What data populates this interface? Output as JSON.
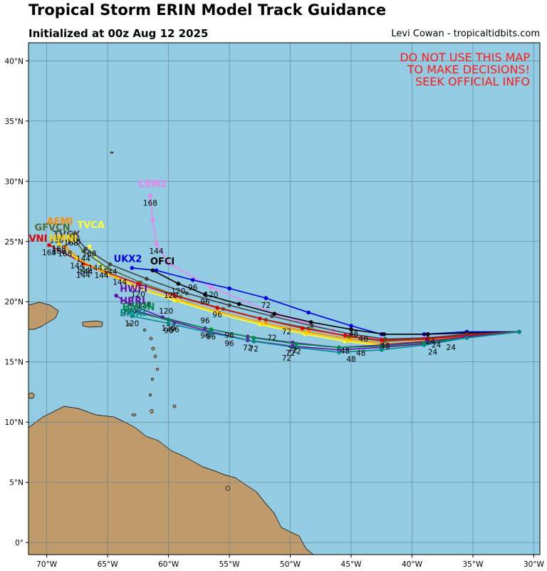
{
  "header": {
    "title": "Tropical Storm ERIN Model Track Guidance",
    "subtitle": "Initialized at 00z Aug 12 2025",
    "credit": "Levi Cowan - tropicaltidbits.com"
  },
  "warning": [
    "DO NOT USE THIS MAP",
    "TO MAKE DECISIONS!",
    "SEEK OFFICIAL INFO"
  ],
  "colors": {
    "ocean": "#92cbe2",
    "land": "#bf9a6b",
    "warning": "#ff1a1a"
  },
  "chart_data": {
    "type": "line",
    "xlim": [
      -71.5,
      -29.5
    ],
    "ylim": [
      -1,
      41.5
    ],
    "x_ticks": [
      {
        "v": -70,
        "label": "70°W"
      },
      {
        "v": -65,
        "label": "65°W"
      },
      {
        "v": -60,
        "label": "60°W"
      },
      {
        "v": -55,
        "label": "55°W"
      },
      {
        "v": -50,
        "label": "50°W"
      },
      {
        "v": -45,
        "label": "45°W"
      },
      {
        "v": -40,
        "label": "40°W"
      },
      {
        "v": -35,
        "label": "35°W"
      },
      {
        "v": -30,
        "label": "30°W"
      }
    ],
    "y_ticks": [
      {
        "v": 0,
        "label": "0°"
      },
      {
        "v": 5,
        "label": "5°N"
      },
      {
        "v": 10,
        "label": "10°N"
      },
      {
        "v": 15,
        "label": "15°N"
      },
      {
        "v": 20,
        "label": "20°N"
      },
      {
        "v": 25,
        "label": "25°N"
      },
      {
        "v": 30,
        "label": "30°N"
      },
      {
        "v": 35,
        "label": "35°N"
      },
      {
        "v": 40,
        "label": "40°N"
      }
    ],
    "grid": true,
    "series": [
      {
        "name": "CEM2",
        "color": "#ee82ee",
        "lon": [
          -31.2,
          -35.5,
          -39.0,
          -42.5,
          -46.5,
          -51.0,
          -56.5,
          -60.0,
          -61.0,
          -61.3,
          -61.5
        ],
        "lat": [
          17.5,
          17.3,
          17.0,
          16.9,
          17.6,
          18.9,
          21.2,
          23.2,
          24.8,
          26.8,
          28.8
        ],
        "hours": [
          {
            "i": 10,
            "t": "168"
          },
          {
            "i": 8,
            "t": "144"
          },
          {
            "i": 6,
            "t": "120"
          }
        ],
        "tag": "CEM2",
        "tag_at": [
          -62.5,
          29.5
        ]
      },
      {
        "name": "UKX2",
        "color": "#0000dd",
        "lon": [
          -31.2,
          -35.5,
          -39.0,
          -42.5,
          -45.0,
          -48.5,
          -52.0,
          -55.0,
          -58.0,
          -61.0,
          -63.0
        ],
        "lat": [
          17.5,
          17.5,
          17.3,
          17.3,
          18.0,
          19.1,
          20.3,
          21.1,
          21.8,
          22.6,
          22.8
        ],
        "hours": [
          {
            "i": 6,
            "t": "72"
          },
          {
            "i": 8,
            "t": "96"
          }
        ],
        "tag": "UKX2",
        "tag_at": [
          -64.5,
          23.3
        ]
      },
      {
        "name": "OFCI",
        "color": "#000000",
        "lon": [
          -31.2,
          -35.5,
          -38.7,
          -42.3,
          -45.0,
          -48.3,
          -51.3,
          -54.2,
          -57.0,
          -59.2,
          -61.3
        ],
        "lat": [
          17.5,
          17.4,
          17.3,
          17.3,
          17.7,
          18.3,
          19.0,
          19.8,
          20.6,
          21.5,
          22.6
        ],
        "hours": [
          {
            "i": 8,
            "t": "96"
          },
          {
            "i": 9,
            "t": "120"
          }
        ],
        "tag": "OFCI",
        "tag_at": [
          -61.5,
          23.1
        ]
      },
      {
        "name": "AEMI",
        "color": "#ff8c00",
        "lon": [
          -31.2,
          -35.5,
          -38.7,
          -42.0,
          -45.0,
          -48.5,
          -52.0,
          -56.0,
          -60.0,
          -63.5,
          -66.8,
          -68.5
        ],
        "lat": [
          17.5,
          17.2,
          16.8,
          16.5,
          16.9,
          17.5,
          18.2,
          19.2,
          20.4,
          21.6,
          23.1,
          24.6
        ],
        "hours": [
          {
            "i": 11,
            "t": "168"
          },
          {
            "i": 10,
            "t": "144"
          }
        ],
        "tag": "AEMI",
        "tag_at": [
          -70.0,
          26.4
        ]
      },
      {
        "name": "TVCA",
        "color": "#ffff33",
        "lon": [
          -31.2,
          -35.5,
          -38.8,
          -42.2,
          -45.5,
          -48.8,
          -52.5,
          -56.0,
          -59.5,
          -62.8,
          -65.5,
          -66.5
        ],
        "lat": [
          17.5,
          17.1,
          16.6,
          16.3,
          16.7,
          17.3,
          18.1,
          19.0,
          20.1,
          21.2,
          22.8,
          24.6
        ],
        "hours": [
          {
            "i": 11,
            "t": "168"
          },
          {
            "i": 10,
            "t": "144"
          }
        ],
        "tag": "TVCA",
        "tag_at": [
          -67.5,
          26.1
        ]
      },
      {
        "name": "GFVCN",
        "color": "#556b2f",
        "lon": [
          -31.2,
          -35.5,
          -38.8,
          -42.3,
          -45.2,
          -48.5,
          -52.0,
          -55.5,
          -59.0,
          -62.3,
          -65.0,
          -67.0,
          -68.0
        ],
        "lat": [
          17.5,
          17.2,
          16.9,
          16.7,
          17.1,
          17.8,
          18.5,
          19.4,
          20.4,
          21.6,
          22.8,
          24.2,
          25.5
        ],
        "hours": [
          {
            "i": 12,
            "t": "168"
          },
          {
            "i": 11,
            "t": "144"
          }
        ],
        "tag": "GFVCN",
        "tag_at": [
          -71.0,
          25.9
        ]
      },
      {
        "name": "TVCX",
        "color": "#444444",
        "lon": [
          -31.2,
          -35.5,
          -38.7,
          -42.2,
          -45.0,
          -48.2,
          -51.5,
          -55.0,
          -58.5,
          -61.8,
          -64.8,
          -66.8,
          -67.8
        ],
        "lat": [
          17.5,
          17.3,
          17.0,
          16.9,
          17.3,
          18.0,
          18.8,
          19.7,
          20.7,
          21.9,
          23.1,
          24.4,
          25.6
        ],
        "hours": [
          {
            "i": 12,
            "t": "168"
          },
          {
            "i": 10,
            "t": "144"
          }
        ],
        "tag": "TVCX",
        "tag_at": [
          -69.5,
          25.3
        ]
      },
      {
        "name": "AVNI",
        "color": "#dd0000",
        "lon": [
          -31.2,
          -35.5,
          -38.8,
          -42.5,
          -45.5,
          -49.0,
          -52.5,
          -56.0,
          -59.5,
          -62.5,
          -65.0,
          -67.0,
          -69.8
        ],
        "lat": [
          17.5,
          17.2,
          16.9,
          16.8,
          17.2,
          17.8,
          18.6,
          19.5,
          20.5,
          21.5,
          22.4,
          23.2,
          24.7
        ],
        "hours": [
          {
            "i": 12,
            "t": "168"
          },
          {
            "i": 11,
            "t": "144"
          }
        ],
        "tag": "AVNI",
        "tag_at": [
          -72.0,
          25.0
        ]
      },
      {
        "name": "HMNI",
        "color": "#ffd000",
        "lon": [
          -31.2,
          -35.5,
          -38.8,
          -42.3,
          -45.3,
          -48.7,
          -52.3,
          -55.8,
          -59.2,
          -62.3,
          -65.0,
          -67.5,
          -69.0
        ],
        "lat": [
          17.5,
          17.1,
          16.7,
          16.4,
          16.8,
          17.4,
          18.2,
          19.1,
          20.1,
          21.2,
          22.3,
          23.6,
          24.8
        ],
        "hours": [
          {
            "i": 12,
            "t": "168"
          },
          {
            "i": 11,
            "t": "144"
          }
        ],
        "tag": "HMNI",
        "tag_at": [
          -69.8,
          25.0
        ]
      },
      {
        "name": "HWFI",
        "color": "#6a0dad",
        "lon": [
          -31.2,
          -35.5,
          -38.8,
          -42.5,
          -46.0,
          -49.8,
          -53.5,
          -57.0,
          -60.5,
          -63.2,
          -64.3
        ],
        "lat": [
          17.5,
          17.1,
          16.7,
          16.4,
          16.2,
          16.6,
          17.1,
          17.8,
          18.7,
          19.8,
          20.5
        ],
        "hours": [
          {
            "i": 5,
            "t": "72"
          },
          {
            "i": 7,
            "t": "96"
          },
          {
            "i": 9,
            "t": "120"
          }
        ],
        "tag": "HWFI",
        "tag_at": [
          -64.0,
          20.8
        ]
      },
      {
        "name": "HRRI",
        "color": "#6a0dad",
        "lon": [
          -31.2,
          -35.5,
          -39.0,
          -42.5,
          -46.0,
          -49.8,
          -53.5,
          -56.5,
          -59.5,
          -62.5
        ],
        "lat": [
          17.5,
          17.0,
          16.5,
          16.2,
          16.0,
          16.3,
          16.8,
          17.5,
          18.3,
          19.2
        ],
        "hours": [
          {
            "i": 6,
            "t": "72"
          },
          {
            "i": 8,
            "t": "96"
          }
        ],
        "tag": "HRRI",
        "tag_at": [
          -64.0,
          19.8
        ]
      },
      {
        "name": "HMON",
        "color": "#008b45",
        "lon": [
          -31.2,
          -35.5,
          -39.0,
          -42.5,
          -46.0,
          -49.5,
          -53.0,
          -56.5,
          -60.0,
          -63.5
        ],
        "lat": [
          17.5,
          17.0,
          16.6,
          16.3,
          16.2,
          16.5,
          17.0,
          17.7,
          18.5,
          19.3
        ],
        "hours": [
          {
            "i": 5,
            "t": "72"
          },
          {
            "i": 7,
            "t": "96"
          }
        ],
        "tag": "HMON",
        "tag_at": [
          -63.8,
          19.3
        ]
      },
      {
        "name": "EMXI",
        "color": "#008b8b",
        "lon": [
          -31.2,
          -35.5,
          -39.0,
          -42.5,
          -46.0,
          -49.5,
          -53.0,
          -56.5,
          -60.0,
          -63.0
        ],
        "lat": [
          17.5,
          17.0,
          16.4,
          16.0,
          15.8,
          16.2,
          16.7,
          17.4,
          18.2,
          18.8
        ],
        "hours": [
          {
            "i": 6,
            "t": "72"
          },
          {
            "i": 8,
            "t": "96"
          },
          {
            "i": 9,
            "t": "120"
          }
        ],
        "tag": "EMXI",
        "tag_at": [
          -64.0,
          18.8
        ]
      }
    ],
    "extra_hour_labels": [
      {
        "lon": -38.5,
        "lat": 16.5,
        "t": "24"
      },
      {
        "lon": -38.3,
        "lat": 15.6,
        "t": "24"
      },
      {
        "lon": -36.8,
        "lat": 16.0,
        "t": "24"
      },
      {
        "lon": -38.0,
        "lat": 16.2,
        "t": "24"
      },
      {
        "lon": -45.0,
        "lat": 15.0,
        "t": "48"
      },
      {
        "lon": -44.2,
        "lat": 15.5,
        "t": "48"
      },
      {
        "lon": -45.5,
        "lat": 15.7,
        "t": "48"
      },
      {
        "lon": -42.2,
        "lat": 16.1,
        "t": "48"
      },
      {
        "lon": -44.8,
        "lat": 17.1,
        "t": "48"
      },
      {
        "lon": -44.0,
        "lat": 16.7,
        "t": "48"
      },
      {
        "lon": -50.0,
        "lat": 15.5,
        "t": "72"
      },
      {
        "lon": -50.3,
        "lat": 15.1,
        "t": "72"
      },
      {
        "lon": -51.5,
        "lat": 16.8,
        "t": "72"
      },
      {
        "lon": -50.3,
        "lat": 17.3,
        "t": "72"
      },
      {
        "lon": -55.0,
        "lat": 17.0,
        "t": "96"
      },
      {
        "lon": -55.0,
        "lat": 16.3,
        "t": "96"
      },
      {
        "lon": -57.0,
        "lat": 18.2,
        "t": "96"
      },
      {
        "lon": -56.0,
        "lat": 18.7,
        "t": "96"
      },
      {
        "lon": -60.2,
        "lat": 19.0,
        "t": "120"
      },
      {
        "lon": -62.0,
        "lat": 19.5,
        "t": "120"
      },
      {
        "lon": -59.8,
        "lat": 20.3,
        "t": "120"
      },
      {
        "lon": -62.5,
        "lat": 20.4,
        "t": "120"
      },
      {
        "lon": -60.0,
        "lat": 17.6,
        "t": "120"
      },
      {
        "lon": -64.0,
        "lat": 21.4,
        "t": "144"
      },
      {
        "lon": -66.0,
        "lat": 22.6,
        "t": "144"
      },
      {
        "lon": -67.0,
        "lat": 22.0,
        "t": "144"
      },
      {
        "lon": -69.0,
        "lat": 24.2,
        "t": "168"
      },
      {
        "lon": -69.2,
        "lat": 24.9,
        "t": "168"
      }
    ]
  }
}
